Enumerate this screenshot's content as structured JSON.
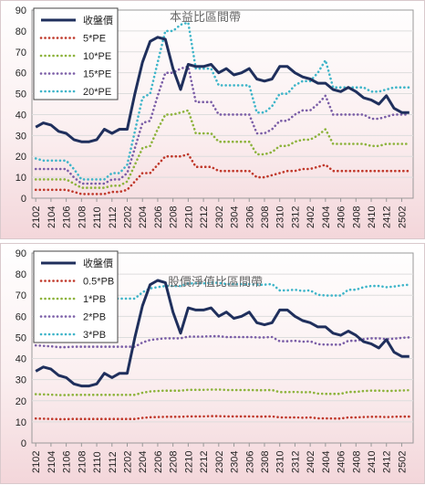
{
  "chart_data": [
    {
      "type": "line",
      "title": "本益比區間帶",
      "xlabel": "",
      "ylabel": "",
      "ylim": [
        0,
        90
      ],
      "yticks": [
        "0",
        "10",
        "20",
        "30",
        "40",
        "50",
        "60",
        "70",
        "80",
        "90"
      ],
      "xticks": [
        "2102",
        "2104",
        "2106",
        "2108",
        "2110",
        "2112",
        "2202",
        "2204",
        "2206",
        "2208",
        "2210",
        "2212",
        "2302",
        "2304",
        "2306",
        "2308",
        "2310",
        "2312",
        "2402",
        "2404",
        "2406",
        "2408",
        "2410",
        "2412",
        "2502"
      ],
      "grid": true,
      "legend_position": "top-left",
      "series": [
        {
          "name": "收盤價",
          "color": "#1f2f5c",
          "style": "solid",
          "values": [
            34,
            36,
            35,
            32,
            31,
            28,
            27,
            27,
            28,
            33,
            31,
            33,
            33,
            50,
            65,
            75,
            77,
            76,
            62,
            52,
            64,
            63,
            63,
            64,
            60,
            62,
            59,
            60,
            62,
            57,
            56,
            57,
            63,
            63,
            60,
            58,
            57,
            55,
            55,
            52,
            51,
            53,
            51,
            48,
            47,
            45,
            49,
            43,
            41,
            41
          ]
        },
        {
          "name": "5*PE",
          "color": "#c0392b",
          "style": "dotted",
          "values": [
            4,
            4,
            4,
            4,
            4,
            3,
            2,
            2,
            2,
            2,
            3,
            3,
            4,
            8,
            12,
            12,
            16,
            20,
            20,
            20,
            21,
            15,
            15,
            15,
            13,
            13,
            13,
            13,
            13,
            10,
            10,
            11,
            12,
            13,
            13,
            14,
            14,
            15,
            16,
            13,
            13,
            13,
            13,
            13,
            13,
            13,
            13,
            13,
            13,
            13
          ]
        },
        {
          "name": "10*PE",
          "color": "#8db33c",
          "style": "dotted",
          "values": [
            9,
            9,
            9,
            9,
            9,
            7,
            5,
            5,
            5,
            5,
            6,
            6,
            8,
            16,
            24,
            25,
            33,
            40,
            40,
            41,
            42,
            31,
            31,
            31,
            27,
            27,
            27,
            27,
            27,
            21,
            21,
            22,
            25,
            25,
            27,
            28,
            28,
            30,
            33,
            26,
            26,
            26,
            26,
            26,
            25,
            25,
            26,
            26,
            26,
            26
          ]
        },
        {
          "name": "15*PE",
          "color": "#7b5ea7",
          "style": "dotted",
          "values": [
            14,
            14,
            14,
            14,
            14,
            10,
            7,
            7,
            7,
            7,
            9,
            9,
            12,
            24,
            36,
            37,
            49,
            60,
            60,
            62,
            63,
            46,
            46,
            46,
            40,
            40,
            40,
            40,
            40,
            31,
            31,
            33,
            37,
            37,
            40,
            42,
            42,
            45,
            49,
            40,
            40,
            40,
            40,
            40,
            38,
            38,
            39,
            40,
            40,
            40
          ]
        },
        {
          "name": "20*PE",
          "color": "#3fb5c9",
          "style": "dotted",
          "values": [
            19,
            18,
            18,
            18,
            18,
            14,
            9,
            9,
            9,
            9,
            12,
            12,
            16,
            32,
            48,
            50,
            65,
            80,
            80,
            83,
            84,
            62,
            62,
            62,
            54,
            54,
            54,
            54,
            54,
            41,
            41,
            44,
            50,
            50,
            54,
            56,
            56,
            60,
            66,
            53,
            53,
            53,
            53,
            53,
            51,
            51,
            52,
            53,
            53,
            53
          ]
        }
      ]
    },
    {
      "type": "line",
      "title": "股價淨值比區間帶",
      "xlabel": "",
      "ylabel": "",
      "ylim": [
        0,
        90
      ],
      "yticks": [
        "0",
        "10",
        "20",
        "30",
        "40",
        "50",
        "60",
        "70",
        "80",
        "90"
      ],
      "xticks": [
        "2102",
        "2104",
        "2106",
        "2108",
        "2110",
        "2112",
        "2202",
        "2204",
        "2206",
        "2208",
        "2210",
        "2212",
        "2302",
        "2304",
        "2306",
        "2308",
        "2310",
        "2312",
        "2402",
        "2404",
        "2406",
        "2408",
        "2410",
        "2412",
        "2502"
      ],
      "grid": true,
      "legend_position": "top-left",
      "series": [
        {
          "name": "收盤價",
          "color": "#1f2f5c",
          "style": "solid",
          "values": [
            34,
            36,
            35,
            32,
            31,
            28,
            27,
            27,
            28,
            33,
            31,
            33,
            33,
            50,
            65,
            75,
            77,
            76,
            62,
            52,
            64,
            63,
            63,
            64,
            60,
            62,
            59,
            60,
            62,
            57,
            56,
            57,
            63,
            63,
            60,
            58,
            57,
            55,
            55,
            52,
            51,
            53,
            51,
            48,
            47,
            45,
            49,
            43,
            41,
            41
          ]
        },
        {
          "name": "0.5*PB",
          "color": "#c0392b",
          "style": "dotted",
          "values": [
            11.6,
            11.5,
            11.4,
            11.3,
            11.3,
            11.4,
            11.4,
            11.4,
            11.4,
            11.4,
            11.4,
            11.4,
            11.4,
            11.4,
            11.9,
            12.2,
            12.3,
            12.4,
            12.4,
            12.4,
            12.6,
            12.6,
            12.6,
            12.7,
            12.7,
            12.6,
            12.6,
            12.6,
            12.6,
            12.5,
            12.5,
            12.6,
            12.1,
            12.1,
            12.1,
            12.0,
            12.1,
            11.7,
            11.7,
            11.6,
            11.6,
            12.1,
            12.1,
            12.3,
            12.4,
            12.4,
            12.3,
            12.4,
            12.5,
            12.5
          ]
        },
        {
          "name": "1*PB",
          "color": "#8db33c",
          "style": "dotted",
          "values": [
            23.1,
            23.0,
            22.9,
            22.7,
            22.7,
            22.8,
            22.8,
            22.8,
            22.8,
            22.8,
            22.8,
            22.8,
            22.8,
            22.8,
            23.8,
            24.4,
            24.6,
            24.8,
            24.8,
            24.8,
            25.2,
            25.2,
            25.2,
            25.3,
            25.3,
            25.1,
            25.1,
            25.1,
            25.1,
            25.0,
            25.0,
            25.1,
            24.1,
            24.1,
            24.2,
            24.0,
            24.1,
            23.4,
            23.3,
            23.3,
            23.3,
            24.2,
            24.2,
            24.6,
            24.8,
            24.8,
            24.6,
            24.7,
            24.9,
            25.0
          ]
        },
        {
          "name": "2*PB",
          "color": "#7b5ea7",
          "style": "dotted",
          "values": [
            46.2,
            46.0,
            45.8,
            45.4,
            45.4,
            45.6,
            45.6,
            45.6,
            45.6,
            45.6,
            45.6,
            45.6,
            45.6,
            45.6,
            47.6,
            48.8,
            49.2,
            49.6,
            49.6,
            49.6,
            50.4,
            50.4,
            50.4,
            50.6,
            50.6,
            50.2,
            50.2,
            50.2,
            50.2,
            50.0,
            50.0,
            50.2,
            48.2,
            48.2,
            48.4,
            48.0,
            48.2,
            46.8,
            46.6,
            46.6,
            46.6,
            48.4,
            48.4,
            49.2,
            49.6,
            49.6,
            49.2,
            49.4,
            49.8,
            50.0
          ]
        },
        {
          "name": "3*PB",
          "color": "#3fb5c9",
          "style": "dotted",
          "values": [
            69.3,
            69.0,
            68.7,
            68.1,
            68.1,
            68.4,
            68.4,
            68.4,
            68.4,
            68.4,
            68.4,
            68.4,
            68.4,
            68.4,
            71.4,
            73.2,
            73.8,
            74.4,
            74.4,
            74.4,
            75.6,
            75.6,
            75.6,
            75.9,
            75.9,
            75.3,
            75.3,
            75.3,
            75.3,
            75.0,
            75.0,
            75.3,
            72.3,
            72.3,
            72.6,
            72.0,
            72.3,
            70.2,
            69.9,
            69.9,
            69.9,
            72.6,
            72.6,
            73.8,
            74.4,
            74.4,
            73.8,
            74.1,
            74.7,
            75.0
          ]
        }
      ]
    }
  ]
}
